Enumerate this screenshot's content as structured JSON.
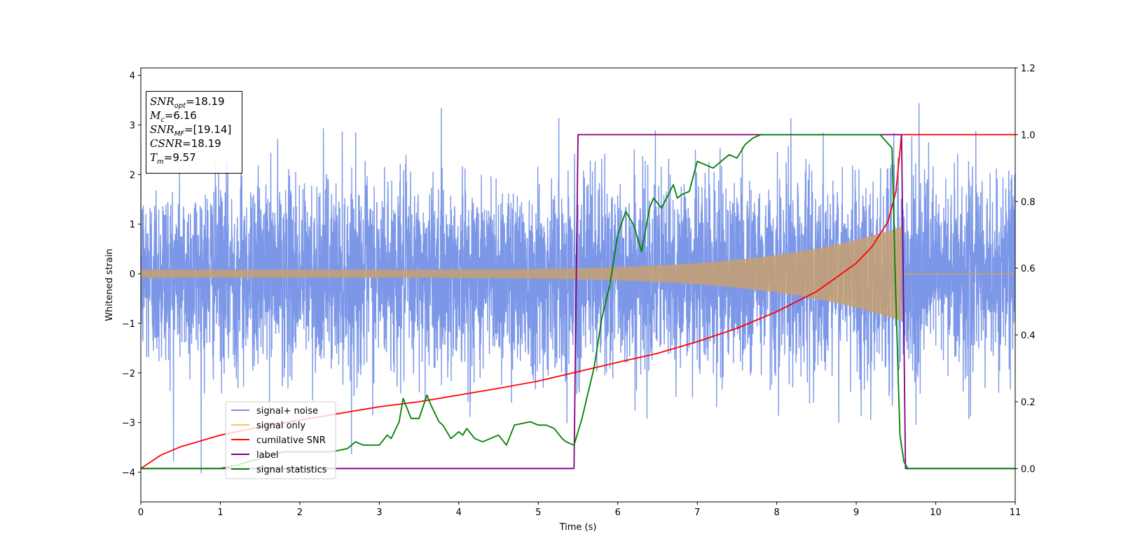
{
  "chart_data": {
    "type": "line",
    "xlabel": "Time (s)",
    "ylabel": "Whitened strain",
    "xlim": [
      0,
      11
    ],
    "ylim_left": [
      -4.6,
      4.15
    ],
    "ylim_right": [
      -0.1,
      1.2
    ],
    "x_ticks": [
      "0",
      "1",
      "2",
      "3",
      "4",
      "5",
      "6",
      "7",
      "8",
      "9",
      "10",
      "11"
    ],
    "y_ticks_left": [
      "−4",
      "−3",
      "−2",
      "−1",
      "0",
      "1",
      "2",
      "3",
      "4"
    ],
    "y_ticks_right": [
      "0.0",
      "0.2",
      "0.4",
      "0.6",
      "0.8",
      "1.0",
      "1.2"
    ],
    "legend": {
      "placement": "lower-left",
      "entries": [
        "signal+ noise",
        "signal only",
        "cumilative SNR",
        "label",
        "signal statistics"
      ]
    },
    "info_box": {
      "snr_opt": {
        "sym": "SNR",
        "sub": "opt",
        "value": "=18.19"
      },
      "mc": {
        "sym": "M",
        "sub": "c",
        "value": "=6.16"
      },
      "snr_mf": {
        "sym": "SNR",
        "sub": "MF",
        "value": "=[19.14]"
      },
      "csnr": {
        "sym": "CSNR",
        "value": "=18.19"
      },
      "tm": {
        "sym": "T",
        "sub": "m",
        "value": "=9.57"
      }
    },
    "series": [
      {
        "name": "signal+ noise",
        "axis": "left",
        "color": "#7591e6",
        "description_values": {
          "noise_std": 1.0,
          "min": -4.15,
          "max": 3.75
        }
      },
      {
        "name": "signal only",
        "axis": "left",
        "color": "#f5c65c",
        "chirp": {
          "t_start": 0,
          "t_merge": 9.57,
          "amp_start": 0.08,
          "amp_end": 0.95
        }
      },
      {
        "name": "cumilative SNR",
        "axis": "right",
        "color": "#ff0000",
        "x": [
          0,
          0.25,
          0.5,
          1,
          1.5,
          2,
          2.5,
          3,
          3.5,
          4,
          4.5,
          5,
          5.5,
          6,
          6.5,
          7,
          7.5,
          8,
          8.5,
          9,
          9.2,
          9.4,
          9.5,
          9.57,
          11
        ],
        "y": [
          0.0,
          0.04,
          0.065,
          0.1,
          0.125,
          0.145,
          0.165,
          0.185,
          0.2,
          0.22,
          0.24,
          0.262,
          0.29,
          0.318,
          0.345,
          0.38,
          0.42,
          0.47,
          0.53,
          0.615,
          0.665,
          0.74,
          0.83,
          1.0,
          1.0
        ]
      },
      {
        "name": "label",
        "axis": "right",
        "color": "#800080",
        "x": [
          0,
          5.45,
          5.5,
          9.57,
          9.62,
          11
        ],
        "y": [
          0.0,
          0.0,
          1.0,
          1.0,
          0.0,
          0.0
        ]
      },
      {
        "name": "signal statistics",
        "axis": "right",
        "color": "#008000",
        "x": [
          0,
          1.0,
          1.2,
          1.5,
          1.8,
          2.0,
          2.2,
          2.4,
          2.6,
          2.7,
          2.8,
          3.0,
          3.1,
          3.15,
          3.25,
          3.3,
          3.4,
          3.5,
          3.6,
          3.65,
          3.75,
          3.8,
          3.9,
          4.0,
          4.05,
          4.1,
          4.2,
          4.3,
          4.5,
          4.6,
          4.7,
          4.9,
          5.0,
          5.1,
          5.2,
          5.3,
          5.35,
          5.45,
          5.55,
          5.6,
          5.7,
          5.8,
          5.9,
          6.0,
          6.1,
          6.2,
          6.3,
          6.4,
          6.45,
          6.55,
          6.7,
          6.75,
          6.8,
          6.9,
          7.0,
          7.1,
          7.2,
          7.4,
          7.5,
          7.6,
          7.7,
          7.8,
          8.0,
          8.5,
          9.0,
          9.3,
          9.45,
          9.5,
          9.55,
          9.6,
          9.65,
          11
        ],
        "y": [
          0.0,
          0.0,
          0.01,
          0.03,
          0.05,
          0.05,
          0.05,
          0.05,
          0.06,
          0.08,
          0.07,
          0.07,
          0.1,
          0.09,
          0.14,
          0.21,
          0.15,
          0.15,
          0.22,
          0.19,
          0.14,
          0.13,
          0.09,
          0.11,
          0.1,
          0.12,
          0.09,
          0.08,
          0.1,
          0.07,
          0.13,
          0.14,
          0.13,
          0.13,
          0.12,
          0.09,
          0.08,
          0.07,
          0.15,
          0.2,
          0.3,
          0.45,
          0.55,
          0.7,
          0.77,
          0.73,
          0.65,
          0.78,
          0.81,
          0.78,
          0.85,
          0.81,
          0.82,
          0.83,
          0.92,
          0.91,
          0.9,
          0.94,
          0.93,
          0.97,
          0.99,
          1.0,
          1.0,
          1.0,
          1.0,
          1.0,
          0.96,
          0.5,
          0.1,
          0.02,
          0.0,
          0.0
        ]
      }
    ]
  }
}
